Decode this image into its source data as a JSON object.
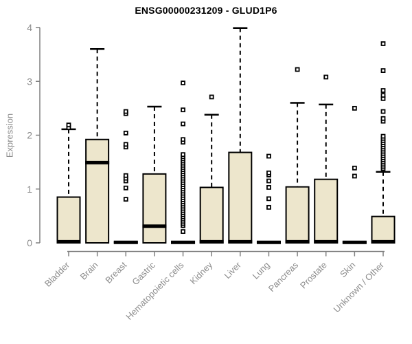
{
  "title": "ENSG00000231209 - GLUD1P6",
  "chart_data": {
    "type": "boxplot",
    "title": "ENSG00000231209 - GLUD1P6",
    "xlabel": "",
    "ylabel": "Expression",
    "ylim": [
      0,
      4
    ],
    "yticks": [
      0,
      1,
      2,
      3,
      4
    ],
    "grid": false,
    "legend": "none",
    "categories": [
      "Bladder",
      "Brain",
      "Breast",
      "Gastric",
      "Hematopoietic cells",
      "Kidney",
      "Liver",
      "Lung",
      "Pancreas",
      "Prostate",
      "Skin",
      "Unknown / Other"
    ],
    "boxes": [
      {
        "category": "Bladder",
        "q1": 0,
        "median": 0.02,
        "q3": 0.85,
        "whisker_low": 0,
        "whisker_high": 2.11,
        "outliers": [
          2.14,
          2.19
        ]
      },
      {
        "category": "Brain",
        "q1": 0,
        "median": 1.49,
        "q3": 1.92,
        "whisker_low": 0,
        "whisker_high": 3.6,
        "outliers": []
      },
      {
        "category": "Breast",
        "q1": 0,
        "median": 0.01,
        "q3": 0.02,
        "whisker_low": 0,
        "whisker_high": 0.02,
        "outliers": [
          0.81,
          1.02,
          1.15,
          1.2,
          1.25,
          1.78,
          1.83,
          2.04,
          2.4,
          2.44
        ]
      },
      {
        "category": "Gastric",
        "q1": 0,
        "median": 0.31,
        "q3": 1.28,
        "whisker_low": 0,
        "whisker_high": 2.53,
        "outliers": []
      },
      {
        "category": "Hematopoietic cells",
        "q1": 0,
        "median": 0.01,
        "q3": 0.02,
        "whisker_low": 0,
        "whisker_high": 0.02,
        "outliers": [
          0.21,
          0.32,
          0.36,
          0.4,
          0.44,
          0.48,
          0.52,
          0.56,
          0.6,
          0.64,
          0.68,
          0.72,
          0.76,
          0.8,
          0.84,
          0.88,
          0.92,
          0.96,
          1.0,
          1.04,
          1.08,
          1.12,
          1.16,
          1.2,
          1.24,
          1.28,
          1.32,
          1.36,
          1.4,
          1.44,
          1.48,
          1.52,
          1.56,
          1.6,
          1.64,
          1.87,
          1.92,
          2.21,
          2.47,
          2.97
        ]
      },
      {
        "category": "Kidney",
        "q1": 0,
        "median": 0.02,
        "q3": 1.03,
        "whisker_low": 0,
        "whisker_high": 2.38,
        "outliers": [
          2.71
        ]
      },
      {
        "category": "Liver",
        "q1": 0,
        "median": 0.02,
        "q3": 1.68,
        "whisker_low": 0,
        "whisker_high": 3.99,
        "outliers": []
      },
      {
        "category": "Lung",
        "q1": 0,
        "median": 0.01,
        "q3": 0.02,
        "whisker_low": 0,
        "whisker_high": 0.02,
        "outliers": [
          0.66,
          0.82,
          1.03,
          1.15,
          1.26,
          1.3,
          1.61
        ]
      },
      {
        "category": "Pancreas",
        "q1": 0,
        "median": 0.02,
        "q3": 1.04,
        "whisker_low": 0,
        "whisker_high": 2.6,
        "outliers": [
          3.22
        ]
      },
      {
        "category": "Prostate",
        "q1": 0,
        "median": 0.02,
        "q3": 1.18,
        "whisker_low": 0,
        "whisker_high": 2.57,
        "outliers": [
          3.08
        ]
      },
      {
        "category": "Skin",
        "q1": 0,
        "median": 0.01,
        "q3": 0.02,
        "whisker_low": 0,
        "whisker_high": 0.02,
        "outliers": [
          1.24,
          1.39,
          2.5
        ]
      },
      {
        "category": "Unknown / Other",
        "q1": 0,
        "median": 0.02,
        "q3": 0.49,
        "whisker_low": 0,
        "whisker_high": 1.32,
        "outliers": [
          1.38,
          1.42,
          1.46,
          1.5,
          1.54,
          1.58,
          1.62,
          1.66,
          1.7,
          1.74,
          1.78,
          1.82,
          1.86,
          1.9,
          1.94,
          1.98,
          2.26,
          2.31,
          2.44,
          2.68,
          2.74,
          2.83,
          3.2,
          3.7
        ]
      }
    ],
    "colors": {
      "box_fill": "#EDE6CC",
      "box_border": "#000000",
      "median_line": "#000000",
      "whisker": "#000000",
      "outlier_stroke": "#000000",
      "outlier_fill": "#FFFFFF",
      "axis_line": "#808080",
      "tick_text": "#8C8C8C",
      "title_text": "#000000",
      "background": "#FFFFFF"
    }
  }
}
